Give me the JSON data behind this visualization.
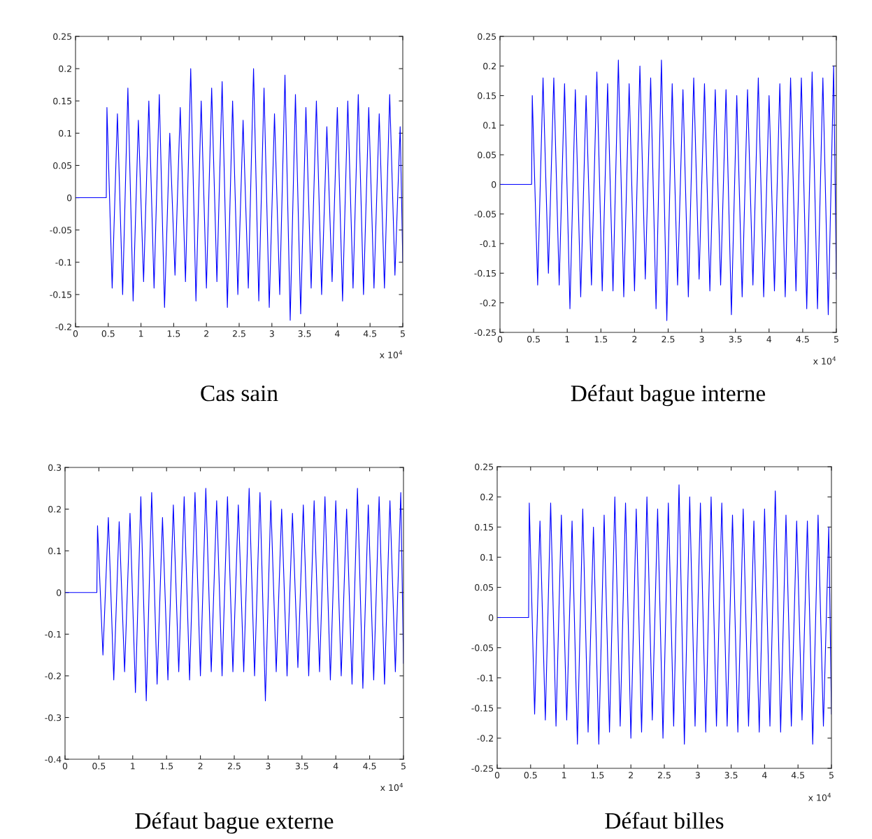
{
  "chart_data": [
    {
      "type": "line",
      "title": "Cas sain",
      "annotations": [
        "x 10$^{4}$"
      ],
      "xlim": [
        0,
        5
      ],
      "xticks": [
        0,
        0.5,
        1,
        1.5,
        2,
        2.5,
        3,
        3.5,
        4,
        4.5,
        5
      ],
      "ylim": [
        -0.2,
        0.25
      ],
      "yticks": [
        -0.2,
        -0.15,
        -0.1,
        -0.05,
        0,
        0.05,
        0.1,
        0.15,
        0.2,
        0.25
      ],
      "grid": false,
      "x": [
        0,
        0.47,
        0.48,
        0.56,
        0.64,
        0.72,
        0.8,
        0.88,
        0.96,
        1.04,
        1.12,
        1.2,
        1.28,
        1.36,
        1.44,
        1.52,
        1.6,
        1.68,
        1.76,
        1.84,
        1.92,
        2.0,
        2.08,
        2.16,
        2.24,
        2.32,
        2.4,
        2.48,
        2.56,
        2.64,
        2.72,
        2.8,
        2.88,
        2.96,
        3.04,
        3.12,
        3.2,
        3.28,
        3.36,
        3.44,
        3.52,
        3.6,
        3.68,
        3.76,
        3.84,
        3.92,
        4.0,
        4.08,
        4.16,
        4.24,
        4.32,
        4.4,
        4.48,
        4.56,
        4.64,
        4.72,
        4.8,
        4.88,
        4.96,
        5.0
      ],
      "series": [
        {
          "color": "#0000ff",
          "values": [
            0,
            0,
            0.14,
            -0.14,
            0.13,
            -0.15,
            0.17,
            -0.16,
            0.12,
            -0.13,
            0.15,
            -0.14,
            0.16,
            -0.17,
            0.1,
            -0.12,
            0.14,
            -0.13,
            0.2,
            -0.16,
            0.15,
            -0.14,
            0.17,
            -0.13,
            0.18,
            -0.17,
            0.15,
            -0.15,
            0.12,
            -0.14,
            0.2,
            -0.16,
            0.17,
            -0.17,
            0.13,
            -0.15,
            0.19,
            -0.19,
            0.16,
            -0.18,
            0.14,
            -0.14,
            0.15,
            -0.15,
            0.11,
            -0.13,
            0.14,
            -0.16,
            0.15,
            -0.14,
            0.16,
            -0.15,
            0.14,
            -0.14,
            0.13,
            -0.14,
            0.16,
            -0.12,
            0.11,
            -0.1
          ]
        }
      ]
    },
    {
      "type": "line",
      "title": "Défaut bague interne",
      "annotations": [
        "x 10$^{4}$"
      ],
      "xlim": [
        0,
        5
      ],
      "xticks": [
        0,
        0.5,
        1,
        1.5,
        2,
        2.5,
        3,
        3.5,
        4,
        4.5,
        5
      ],
      "ylim": [
        -0.25,
        0.25
      ],
      "yticks": [
        -0.25,
        -0.2,
        -0.15,
        -0.1,
        -0.05,
        0,
        0.05,
        0.1,
        0.15,
        0.2,
        0.25
      ],
      "grid": false,
      "x": [
        0,
        0.47,
        0.48,
        0.56,
        0.64,
        0.72,
        0.8,
        0.88,
        0.96,
        1.04,
        1.12,
        1.2,
        1.28,
        1.36,
        1.44,
        1.52,
        1.6,
        1.68,
        1.76,
        1.84,
        1.92,
        2.0,
        2.08,
        2.16,
        2.24,
        2.32,
        2.4,
        2.48,
        2.56,
        2.64,
        2.72,
        2.8,
        2.88,
        2.96,
        3.04,
        3.12,
        3.2,
        3.28,
        3.36,
        3.44,
        3.52,
        3.6,
        3.68,
        3.76,
        3.84,
        3.92,
        4.0,
        4.08,
        4.16,
        4.24,
        4.32,
        4.4,
        4.48,
        4.56,
        4.64,
        4.72,
        4.8,
        4.88,
        4.96,
        5.0
      ],
      "series": [
        {
          "color": "#0000ff",
          "values": [
            0,
            0,
            0.15,
            -0.17,
            0.18,
            -0.15,
            0.18,
            -0.17,
            0.17,
            -0.21,
            0.16,
            -0.19,
            0.15,
            -0.17,
            0.19,
            -0.18,
            0.17,
            -0.18,
            0.21,
            -0.19,
            0.17,
            -0.18,
            0.2,
            -0.16,
            0.18,
            -0.21,
            0.21,
            -0.23,
            0.17,
            -0.17,
            0.16,
            -0.19,
            0.18,
            -0.16,
            0.17,
            -0.18,
            0.16,
            -0.17,
            0.16,
            -0.22,
            0.15,
            -0.19,
            0.16,
            -0.17,
            0.18,
            -0.19,
            0.15,
            -0.18,
            0.17,
            -0.19,
            0.18,
            -0.18,
            0.18,
            -0.21,
            0.19,
            -0.21,
            0.18,
            -0.22,
            0.2,
            -0.16
          ]
        }
      ]
    },
    {
      "type": "line",
      "title": "Défaut bague externe",
      "annotations": [
        "x 10$^{4}$"
      ],
      "xlim": [
        0,
        5
      ],
      "xticks": [
        0,
        0.5,
        1,
        1.5,
        2,
        2.5,
        3,
        3.5,
        4,
        4.5,
        5
      ],
      "ylim": [
        -0.4,
        0.3
      ],
      "yticks": [
        -0.4,
        -0.3,
        -0.2,
        -0.1,
        0,
        0.1,
        0.2,
        0.3
      ],
      "grid": false,
      "x": [
        0,
        0.47,
        0.48,
        0.56,
        0.64,
        0.72,
        0.8,
        0.88,
        0.96,
        1.04,
        1.12,
        1.2,
        1.28,
        1.36,
        1.44,
        1.52,
        1.6,
        1.68,
        1.76,
        1.84,
        1.92,
        2.0,
        2.08,
        2.16,
        2.24,
        2.32,
        2.4,
        2.48,
        2.56,
        2.64,
        2.72,
        2.8,
        2.88,
        2.96,
        3.04,
        3.12,
        3.2,
        3.28,
        3.36,
        3.44,
        3.52,
        3.6,
        3.68,
        3.76,
        3.84,
        3.92,
        4.0,
        4.08,
        4.16,
        4.24,
        4.32,
        4.4,
        4.48,
        4.56,
        4.64,
        4.72,
        4.8,
        4.88,
        4.96,
        5.0
      ],
      "series": [
        {
          "color": "#0000ff",
          "values": [
            0,
            0,
            0.16,
            -0.15,
            0.18,
            -0.21,
            0.17,
            -0.19,
            0.19,
            -0.24,
            0.23,
            -0.26,
            0.24,
            -0.22,
            0.18,
            -0.21,
            0.21,
            -0.19,
            0.23,
            -0.21,
            0.24,
            -0.2,
            0.25,
            -0.19,
            0.22,
            -0.2,
            0.23,
            -0.19,
            0.21,
            -0.19,
            0.25,
            -0.2,
            0.24,
            -0.26,
            0.22,
            -0.19,
            0.2,
            -0.2,
            0.19,
            -0.18,
            0.21,
            -0.2,
            0.22,
            -0.19,
            0.23,
            -0.21,
            0.22,
            -0.2,
            0.2,
            -0.22,
            0.25,
            -0.23,
            0.21,
            -0.21,
            0.23,
            -0.22,
            0.22,
            -0.19,
            0.24,
            -0.17
          ]
        }
      ]
    },
    {
      "type": "line",
      "title": "Défaut billes",
      "annotations": [
        "x 10$^{4}$"
      ],
      "xlim": [
        0,
        5
      ],
      "xticks": [
        0,
        0.5,
        1,
        1.5,
        2,
        2.5,
        3,
        3.5,
        4,
        4.5,
        5
      ],
      "ylim": [
        -0.25,
        0.25
      ],
      "yticks": [
        -0.25,
        -0.2,
        -0.15,
        -0.1,
        -0.05,
        0,
        0.05,
        0.1,
        0.15,
        0.2,
        0.25
      ],
      "grid": false,
      "x": [
        0,
        0.47,
        0.48,
        0.56,
        0.64,
        0.72,
        0.8,
        0.88,
        0.96,
        1.04,
        1.12,
        1.2,
        1.28,
        1.36,
        1.44,
        1.52,
        1.6,
        1.68,
        1.76,
        1.84,
        1.92,
        2.0,
        2.08,
        2.16,
        2.24,
        2.32,
        2.4,
        2.48,
        2.56,
        2.64,
        2.72,
        2.8,
        2.88,
        2.96,
        3.04,
        3.12,
        3.2,
        3.28,
        3.36,
        3.44,
        3.52,
        3.6,
        3.68,
        3.76,
        3.84,
        3.92,
        4.0,
        4.08,
        4.16,
        4.24,
        4.32,
        4.4,
        4.48,
        4.56,
        4.64,
        4.72,
        4.8,
        4.88,
        4.96,
        5.0
      ],
      "series": [
        {
          "color": "#0000ff",
          "values": [
            0,
            0,
            0.19,
            -0.16,
            0.16,
            -0.17,
            0.19,
            -0.18,
            0.17,
            -0.17,
            0.16,
            -0.21,
            0.18,
            -0.19,
            0.15,
            -0.21,
            0.17,
            -0.19,
            0.2,
            -0.18,
            0.19,
            -0.2,
            0.18,
            -0.19,
            0.2,
            -0.17,
            0.18,
            -0.2,
            0.19,
            -0.18,
            0.22,
            -0.21,
            0.2,
            -0.18,
            0.19,
            -0.19,
            0.2,
            -0.18,
            0.19,
            -0.18,
            0.17,
            -0.19,
            0.18,
            -0.18,
            0.16,
            -0.19,
            0.18,
            -0.18,
            0.21,
            -0.19,
            0.17,
            -0.18,
            0.16,
            -0.17,
            0.16,
            -0.21,
            0.17,
            -0.18,
            0.15,
            -0.16
          ]
        }
      ]
    }
  ]
}
